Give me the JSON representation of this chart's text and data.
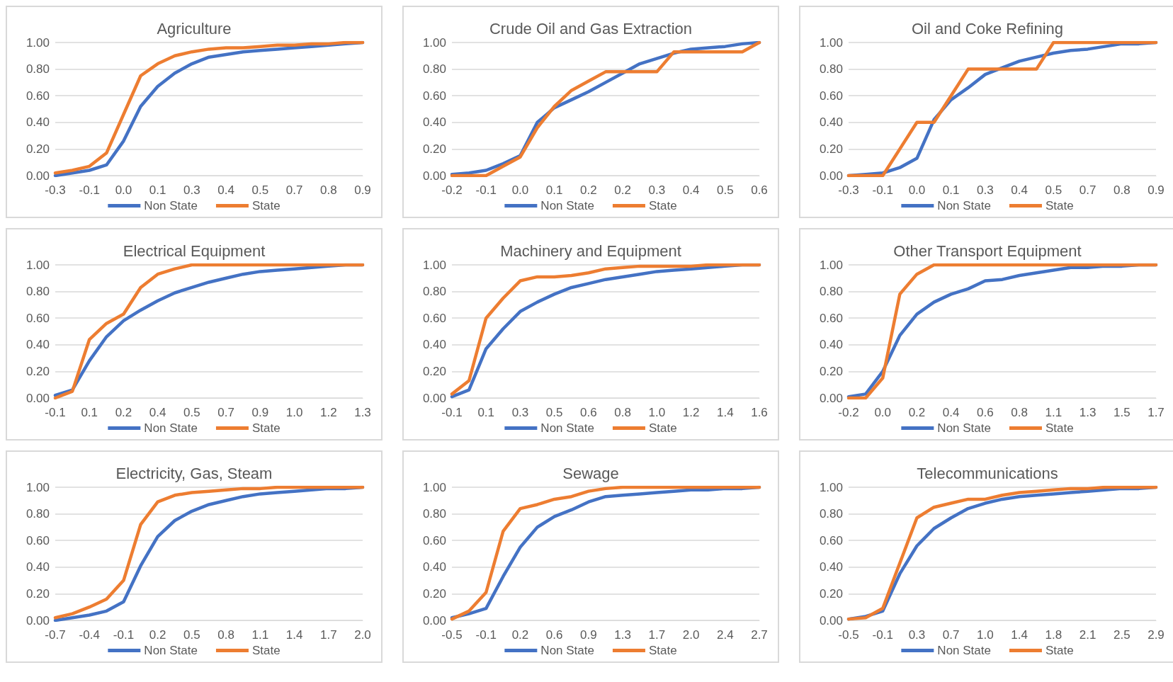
{
  "chart_data": [
    {
      "type": "line",
      "title": "Agriculture",
      "categories": [
        "-0.3",
        null,
        "-0.1",
        null,
        "0.0",
        null,
        "0.1",
        null,
        "0.3",
        null,
        "0.4",
        null,
        "0.5",
        null,
        "0.7",
        null,
        "0.8",
        null,
        "0.9"
      ],
      "series": [
        {
          "name": "Non State",
          "color": "#4472c4",
          "values": [
            0.0,
            0.02,
            0.04,
            0.08,
            0.26,
            0.52,
            0.67,
            0.77,
            0.84,
            0.89,
            0.91,
            0.93,
            0.94,
            0.95,
            0.96,
            0.97,
            0.98,
            0.99,
            1.0
          ]
        },
        {
          "name": "State",
          "color": "#ed7d31",
          "values": [
            0.02,
            0.04,
            0.07,
            0.17,
            0.46,
            0.75,
            0.84,
            0.9,
            0.93,
            0.95,
            0.96,
            0.96,
            0.97,
            0.98,
            0.98,
            0.99,
            0.99,
            1.0,
            1.0
          ]
        }
      ],
      "ylim": [
        0,
        1
      ],
      "yticks": [
        {
          "value": 0,
          "label": "0.00"
        },
        {
          "value": 0.2,
          "label": "0.20"
        },
        {
          "value": 0.4,
          "label": "0.40"
        },
        {
          "value": 0.6,
          "label": "0.60"
        },
        {
          "value": 0.8,
          "label": "0.80"
        },
        {
          "value": 1,
          "label": "1.00"
        }
      ],
      "grid": "y",
      "legend": "bottom",
      "marker": "none",
      "line_style": "solid"
    },
    {
      "type": "line",
      "title": "Crude Oil and Gas Extraction",
      "categories": [
        "-0.2",
        null,
        "-0.1",
        null,
        "0.0",
        null,
        "0.1",
        null,
        "0.2",
        null,
        "0.2",
        null,
        "0.3",
        null,
        "0.4",
        null,
        "0.5",
        null,
        "0.6"
      ],
      "series": [
        {
          "name": "Non State",
          "color": "#4472c4",
          "values": [
            0.01,
            0.02,
            0.04,
            0.09,
            0.15,
            0.4,
            0.51,
            0.57,
            0.63,
            0.7,
            0.77,
            0.84,
            0.88,
            0.92,
            0.95,
            0.96,
            0.97,
            0.99,
            1.0
          ]
        },
        {
          "name": "State",
          "color": "#ed7d31",
          "values": [
            0.0,
            0.0,
            0.0,
            0.07,
            0.14,
            0.36,
            0.52,
            0.64,
            0.71,
            0.78,
            0.78,
            0.78,
            0.78,
            0.93,
            0.93,
            0.93,
            0.93,
            0.93,
            1.0
          ]
        }
      ],
      "ylim": [
        0,
        1
      ],
      "yticks": [
        {
          "value": 0,
          "label": "0.00"
        },
        {
          "value": 0.2,
          "label": "0.20"
        },
        {
          "value": 0.4,
          "label": "0.40"
        },
        {
          "value": 0.6,
          "label": "0.60"
        },
        {
          "value": 0.8,
          "label": "0.80"
        },
        {
          "value": 1,
          "label": "1.00"
        }
      ],
      "grid": "y",
      "legend": "bottom",
      "marker": "none",
      "line_style": "solid"
    },
    {
      "type": "line",
      "title": "Oil and Coke Refining",
      "categories": [
        "-0.3",
        null,
        "-0.1",
        null,
        "0.0",
        null,
        "0.1",
        null,
        "0.3",
        null,
        "0.4",
        null,
        "0.5",
        null,
        "0.7",
        null,
        "0.8",
        null,
        "0.9"
      ],
      "series": [
        {
          "name": "Non State",
          "color": "#4472c4",
          "values": [
            0.0,
            0.01,
            0.02,
            0.06,
            0.13,
            0.42,
            0.57,
            0.66,
            0.76,
            0.81,
            0.86,
            0.89,
            0.92,
            0.94,
            0.95,
            0.97,
            0.99,
            0.99,
            1.0
          ]
        },
        {
          "name": "State",
          "color": "#ed7d31",
          "values": [
            0.0,
            0.0,
            0.0,
            0.2,
            0.4,
            0.4,
            0.6,
            0.8,
            0.8,
            0.8,
            0.8,
            0.8,
            1.0,
            1.0,
            1.0,
            1.0,
            1.0,
            1.0,
            1.0
          ]
        }
      ],
      "ylim": [
        0,
        1
      ],
      "yticks": [
        {
          "value": 0,
          "label": "0.00"
        },
        {
          "value": 0.2,
          "label": "0.20"
        },
        {
          "value": 0.4,
          "label": "0.40"
        },
        {
          "value": 0.6,
          "label": "0.60"
        },
        {
          "value": 0.8,
          "label": "0.80"
        },
        {
          "value": 1,
          "label": "1.00"
        }
      ],
      "grid": "y",
      "legend": "bottom",
      "marker": "none",
      "line_style": "solid"
    },
    {
      "type": "line",
      "title": "Electrical Equipment",
      "categories": [
        "-0.1",
        null,
        "0.1",
        null,
        "0.2",
        null,
        "0.4",
        null,
        "0.5",
        null,
        "0.7",
        null,
        "0.9",
        null,
        "1.0",
        null,
        "1.2",
        null,
        "1.3"
      ],
      "series": [
        {
          "name": "Non State",
          "color": "#4472c4",
          "values": [
            0.02,
            0.06,
            0.28,
            0.46,
            0.58,
            0.66,
            0.73,
            0.79,
            0.83,
            0.87,
            0.9,
            0.93,
            0.95,
            0.96,
            0.97,
            0.98,
            0.99,
            1.0,
            1.0
          ]
        },
        {
          "name": "State",
          "color": "#ed7d31",
          "values": [
            0.0,
            0.05,
            0.44,
            0.56,
            0.63,
            0.83,
            0.93,
            0.97,
            1.0,
            1.0,
            1.0,
            1.0,
            1.0,
            1.0,
            1.0,
            1.0,
            1.0,
            1.0,
            1.0
          ]
        }
      ],
      "ylim": [
        0,
        1
      ],
      "yticks": [
        {
          "value": 0,
          "label": "0.00"
        },
        {
          "value": 0.2,
          "label": "0.20"
        },
        {
          "value": 0.4,
          "label": "0.40"
        },
        {
          "value": 0.6,
          "label": "0.60"
        },
        {
          "value": 0.8,
          "label": "0.80"
        },
        {
          "value": 1,
          "label": "1.00"
        }
      ],
      "grid": "y",
      "legend": "bottom",
      "marker": "none",
      "line_style": "solid"
    },
    {
      "type": "line",
      "title": "Machinery and Equipment",
      "categories": [
        "-0.1",
        null,
        "0.1",
        null,
        "0.3",
        null,
        "0.5",
        null,
        "0.6",
        null,
        "0.8",
        null,
        "1.0",
        null,
        "1.2",
        null,
        "1.4",
        null,
        "1.6"
      ],
      "series": [
        {
          "name": "Non State",
          "color": "#4472c4",
          "values": [
            0.01,
            0.06,
            0.37,
            0.52,
            0.65,
            0.72,
            0.78,
            0.83,
            0.86,
            0.89,
            0.91,
            0.93,
            0.95,
            0.96,
            0.97,
            0.98,
            0.99,
            1.0,
            1.0
          ]
        },
        {
          "name": "State",
          "color": "#ed7d31",
          "values": [
            0.03,
            0.13,
            0.6,
            0.75,
            0.88,
            0.91,
            0.91,
            0.92,
            0.94,
            0.97,
            0.98,
            0.99,
            0.99,
            0.99,
            0.99,
            1.0,
            1.0,
            1.0,
            1.0
          ]
        }
      ],
      "ylim": [
        0,
        1
      ],
      "yticks": [
        {
          "value": 0,
          "label": "0.00"
        },
        {
          "value": 0.2,
          "label": "0.20"
        },
        {
          "value": 0.4,
          "label": "0.40"
        },
        {
          "value": 0.6,
          "label": "0.60"
        },
        {
          "value": 0.8,
          "label": "0.80"
        },
        {
          "value": 1,
          "label": "1.00"
        }
      ],
      "grid": "y",
      "legend": "bottom",
      "marker": "none",
      "line_style": "solid"
    },
    {
      "type": "line",
      "title": "Other Transport Equipment",
      "categories": [
        "-0.2",
        null,
        "0.0",
        null,
        "0.2",
        null,
        "0.4",
        null,
        "0.6",
        null,
        "0.8",
        null,
        "1.1",
        null,
        "1.3",
        null,
        "1.5",
        null,
        "1.7"
      ],
      "series": [
        {
          "name": "Non State",
          "color": "#4472c4",
          "values": [
            0.01,
            0.03,
            0.2,
            0.47,
            0.63,
            0.72,
            0.78,
            0.82,
            0.88,
            0.89,
            0.92,
            0.94,
            0.96,
            0.98,
            0.98,
            0.99,
            0.99,
            1.0,
            1.0
          ]
        },
        {
          "name": "State",
          "color": "#ed7d31",
          "values": [
            0.0,
            0.0,
            0.15,
            0.78,
            0.93,
            1.0,
            1.0,
            1.0,
            1.0,
            1.0,
            1.0,
            1.0,
            1.0,
            1.0,
            1.0,
            1.0,
            1.0,
            1.0,
            1.0
          ]
        }
      ],
      "ylim": [
        0,
        1
      ],
      "yticks": [
        {
          "value": 0,
          "label": "0.00"
        },
        {
          "value": 0.2,
          "label": "0.20"
        },
        {
          "value": 0.4,
          "label": "0.40"
        },
        {
          "value": 0.6,
          "label": "0.60"
        },
        {
          "value": 0.8,
          "label": "0.80"
        },
        {
          "value": 1,
          "label": "1.00"
        }
      ],
      "grid": "y",
      "legend": "bottom",
      "marker": "none",
      "line_style": "solid"
    },
    {
      "type": "line",
      "title": "Electricity, Gas, Steam",
      "categories": [
        "-0.7",
        null,
        "-0.4",
        null,
        "-0.1",
        null,
        "0.2",
        null,
        "0.5",
        null,
        "0.8",
        null,
        "1.1",
        null,
        "1.4",
        null,
        "1.7",
        null,
        "2.0"
      ],
      "series": [
        {
          "name": "Non State",
          "color": "#4472c4",
          "values": [
            0.0,
            0.02,
            0.04,
            0.07,
            0.14,
            0.41,
            0.63,
            0.75,
            0.82,
            0.87,
            0.9,
            0.93,
            0.95,
            0.96,
            0.97,
            0.98,
            0.99,
            0.99,
            1.0
          ]
        },
        {
          "name": "State",
          "color": "#ed7d31",
          "values": [
            0.02,
            0.05,
            0.1,
            0.16,
            0.3,
            0.72,
            0.89,
            0.94,
            0.96,
            0.97,
            0.98,
            0.99,
            0.99,
            1.0,
            1.0,
            1.0,
            1.0,
            1.0,
            1.0
          ]
        }
      ],
      "ylim": [
        0,
        1
      ],
      "yticks": [
        {
          "value": 0,
          "label": "0.00"
        },
        {
          "value": 0.2,
          "label": "0.20"
        },
        {
          "value": 0.4,
          "label": "0.40"
        },
        {
          "value": 0.6,
          "label": "0.60"
        },
        {
          "value": 0.8,
          "label": "0.80"
        },
        {
          "value": 1,
          "label": "1.00"
        }
      ],
      "grid": "y",
      "legend": "bottom",
      "marker": "none",
      "line_style": "solid"
    },
    {
      "type": "line",
      "title": "Sewage",
      "categories": [
        "-0.5",
        null,
        "-0.1",
        null,
        "0.2",
        null,
        "0.6",
        null,
        "0.9",
        null,
        "1.3",
        null,
        "1.7",
        null,
        "2.0",
        null,
        "2.4",
        null,
        "2.7"
      ],
      "series": [
        {
          "name": "Non State",
          "color": "#4472c4",
          "values": [
            0.02,
            0.05,
            0.09,
            0.33,
            0.55,
            0.7,
            0.78,
            0.83,
            0.89,
            0.93,
            0.94,
            0.95,
            0.96,
            0.97,
            0.98,
            0.98,
            0.99,
            0.99,
            1.0
          ]
        },
        {
          "name": "State",
          "color": "#ed7d31",
          "values": [
            0.01,
            0.07,
            0.21,
            0.67,
            0.84,
            0.87,
            0.91,
            0.93,
            0.97,
            0.99,
            1.0,
            1.0,
            1.0,
            1.0,
            1.0,
            1.0,
            1.0,
            1.0,
            1.0
          ]
        }
      ],
      "ylim": [
        0,
        1
      ],
      "yticks": [
        {
          "value": 0,
          "label": "0.00"
        },
        {
          "value": 0.2,
          "label": "0.20"
        },
        {
          "value": 0.4,
          "label": "0.40"
        },
        {
          "value": 0.6,
          "label": "0.60"
        },
        {
          "value": 0.8,
          "label": "0.80"
        },
        {
          "value": 1,
          "label": "1.00"
        }
      ],
      "grid": "y",
      "legend": "bottom",
      "marker": "none",
      "line_style": "solid"
    },
    {
      "type": "line",
      "title": "Telecommunications",
      "categories": [
        "-0.5",
        null,
        "-0.1",
        null,
        "0.3",
        null,
        "0.7",
        null,
        "1.0",
        null,
        "1.4",
        null,
        "1.8",
        null,
        "2.1",
        null,
        "2.5",
        null,
        "2.9"
      ],
      "series": [
        {
          "name": "Non State",
          "color": "#4472c4",
          "values": [
            0.01,
            0.03,
            0.07,
            0.35,
            0.56,
            0.69,
            0.77,
            0.84,
            0.88,
            0.91,
            0.93,
            0.94,
            0.95,
            0.96,
            0.97,
            0.98,
            0.99,
            0.99,
            1.0
          ]
        },
        {
          "name": "State",
          "color": "#ed7d31",
          "values": [
            0.01,
            0.02,
            0.09,
            0.43,
            0.77,
            0.85,
            0.88,
            0.91,
            0.91,
            0.94,
            0.96,
            0.97,
            0.98,
            0.99,
            0.99,
            1.0,
            1.0,
            1.0,
            1.0
          ]
        }
      ],
      "ylim": [
        0,
        1
      ],
      "yticks": [
        {
          "value": 0,
          "label": "0.00"
        },
        {
          "value": 0.2,
          "label": "0.20"
        },
        {
          "value": 0.4,
          "label": "0.40"
        },
        {
          "value": 0.6,
          "label": "0.60"
        },
        {
          "value": 0.8,
          "label": "0.80"
        },
        {
          "value": 1,
          "label": "1.00"
        }
      ],
      "grid": "y",
      "legend": "bottom",
      "marker": "none",
      "line_style": "solid"
    }
  ]
}
